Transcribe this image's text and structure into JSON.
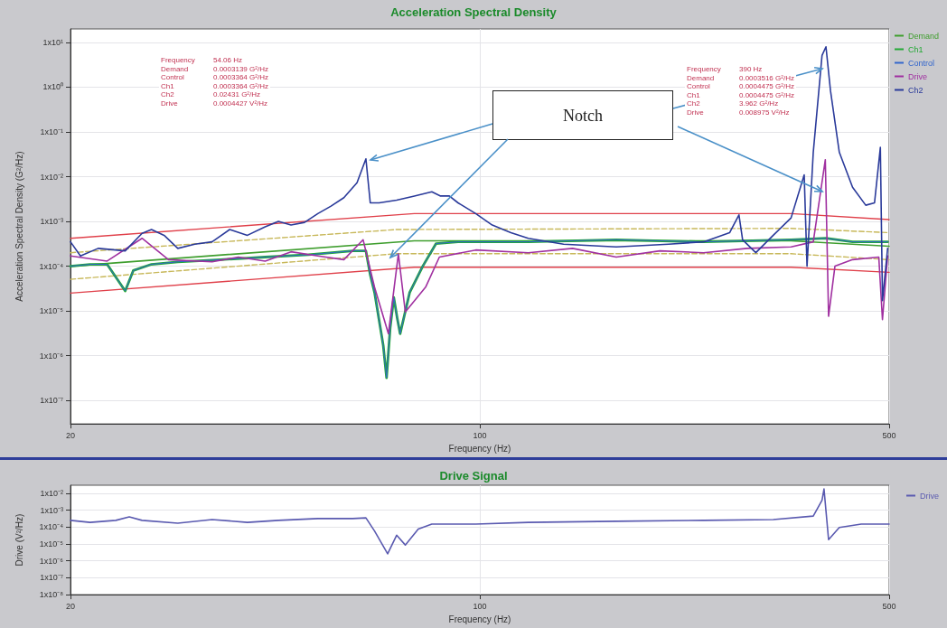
{
  "chart_data": [
    {
      "type": "line",
      "title": "Acceleration Spectral Density",
      "xlabel": "Frequency (Hz)",
      "ylabel": "Acceleration Spectral Density (G²/Hz)",
      "log": "xy",
      "grid": true,
      "legend": "top right",
      "marker": "none",
      "xlim": [
        20,
        500
      ],
      "xticks": [
        20,
        100,
        500
      ],
      "ylim": [
        3e-08,
        20
      ],
      "yticks": [
        {
          "value": 1e-07,
          "label": "1x10⁻⁷"
        },
        {
          "value": 1e-06,
          "label": "1x10⁻⁶"
        },
        {
          "value": 1e-05,
          "label": "1x10⁻⁵"
        },
        {
          "value": 0.0001,
          "label": "1x10⁻⁴"
        },
        {
          "value": 0.001,
          "label": "1x10⁻³"
        },
        {
          "value": 0.01,
          "label": "1x10⁻²"
        },
        {
          "value": 0.1,
          "label": "1x10⁻¹"
        },
        {
          "value": 1,
          "label": "1x10⁰"
        },
        {
          "value": 10,
          "label": "1x10¹"
        }
      ],
      "series": [
        {
          "color": "#e0404a",
          "x": [
            20,
            77.3,
            340,
            500
          ],
          "values": [
            0.00042,
            0.0015,
            0.0015,
            0.0011
          ]
        },
        {
          "color": "#e0404a",
          "x": [
            20,
            77.3,
            340,
            500
          ],
          "values": [
            2.5e-05,
            9.5e-05,
            9.5e-05,
            7.3e-05
          ]
        },
        {
          "color": "#c8b85a",
          "line_style": "dashed",
          "x": [
            20,
            72.1,
            340,
            500
          ],
          "values": [
            0.0002,
            0.00066,
            0.0007,
            0.00056
          ]
        },
        {
          "color": "#c8b85a",
          "line_style": "dashed",
          "x": [
            20,
            72.1,
            340,
            500
          ],
          "values": [
            5.1e-05,
            0.00019,
            0.00019,
            0.00014
          ]
        },
        {
          "name": "Demand",
          "color": "#3f9e2e",
          "x": [
            20,
            77.3,
            340,
            500
          ],
          "values": [
            0.0001,
            0.00037,
            0.00037,
            0.00028
          ]
        },
        {
          "name": "Ch1",
          "color": "#22a834",
          "x": [
            20,
            21.6,
            23.1,
            24.8,
            25.6,
            27.5,
            30.5,
            36.1,
            43.0,
            51.0,
            60.7,
            63.9,
            65.0,
            66.1,
            68.4,
            69.3,
            70.3,
            71.3,
            72.3,
            73.1,
            75.9,
            79.9,
            84.2,
            91.8,
            121,
            171,
            241,
            340,
            390,
            433,
            497
          ],
          "values": [
            0.0001,
            0.00011,
            0.00011,
            2.8e-05,
            8e-05,
            0.00011,
            0.000125,
            0.00014,
            0.00016,
            0.00018,
            0.00022,
            0.00022,
            6.4e-05,
            2.6e-05,
            1.7e-06,
            3.2e-07,
            4.2e-06,
            2e-05,
            6.7e-06,
            3.1e-06,
            2.6e-05,
            0.0001,
            0.00032,
            0.00035,
            0.00035,
            0.00039,
            0.00035,
            0.00039,
            0.00042,
            0.00035,
            0.00035
          ]
        },
        {
          "name": "Control",
          "color": "#3366cc",
          "x": [
            20,
            21.6,
            23.1,
            24.8,
            25.6,
            27.5,
            30.5,
            36.1,
            43.0,
            51.0,
            60.7,
            63.9,
            65.0,
            66.1,
            68.4,
            69.3,
            70.3,
            71.3,
            72.3,
            73.1,
            75.9,
            79.9,
            84.2,
            91.8,
            121,
            171,
            241,
            340,
            390,
            433,
            497
          ],
          "values": [
            0.0001,
            0.00011,
            0.00011,
            2.8e-05,
            8e-05,
            0.00011,
            0.000125,
            0.00014,
            0.00016,
            0.00018,
            0.00022,
            0.00022,
            6.4e-05,
            2.6e-05,
            1.7e-06,
            3.2e-07,
            4.2e-06,
            2e-05,
            6.7e-06,
            3.1e-06,
            2.6e-05,
            0.0001,
            0.00032,
            0.00035,
            0.00035,
            0.00039,
            0.00035,
            0.00039,
            0.00042,
            0.00035,
            0.00035
          ]
        },
        {
          "name": "Drive",
          "color": "#a030a0",
          "x": [
            20,
            23.1,
            26.5,
            29.4,
            34.9,
            38.7,
            43.0,
            47.6,
            52.9,
            58.6,
            63.2,
            66.1,
            69.8,
            72.6,
            74.6,
            80.8,
            85.3,
            98.4,
            121,
            144,
            171,
            203,
            241,
            286,
            340,
            371,
            389,
            394,
            404,
            433,
            480,
            487,
            497
          ],
          "values": [
            0.00017,
            0.00013,
            0.00042,
            0.00014,
            0.000125,
            0.00016,
            0.00013,
            0.00021,
            0.00017,
            0.00014,
            0.00039,
            3.4e-05,
            3.1e-06,
            0.00019,
            9.5e-06,
            3.4e-05,
            0.00016,
            0.00023,
            0.0002,
            0.00025,
            0.00016,
            0.00022,
            0.0002,
            0.00025,
            0.00027,
            0.00035,
            0.024,
            7.6e-06,
            0.0001,
            0.00014,
            0.00016,
            6.4e-06,
            0.00017
          ]
        },
        {
          "name": "Ch2",
          "color": "#2a3a9a",
          "x": [
            20,
            20.8,
            22.3,
            24.8,
            26.5,
            27.5,
            28.9,
            30.5,
            32.6,
            34.9,
            37.4,
            40.1,
            43.0,
            45.3,
            47.6,
            50.2,
            52.9,
            55.7,
            58.6,
            61.7,
            63.9,
            65.0,
            67.3,
            72.1,
            77.3,
            82.8,
            85.7,
            88.7,
            91.8,
            98.4,
            105,
            113,
            121,
            139,
            171,
            210,
            241,
            267,
            277,
            281,
            296,
            317,
            340,
            358,
            362,
            371,
            384,
            390,
            397,
            411,
            433,
            456,
            472,
            483,
            487,
            497
          ],
          "values": [
            0.00035,
            0.00017,
            0.00025,
            0.00022,
            0.00054,
            0.00066,
            0.00049,
            0.00025,
            0.00031,
            0.00035,
            0.00066,
            0.00049,
            0.00076,
            0.001,
            0.00083,
            0.00095,
            0.0015,
            0.0022,
            0.0034,
            0.0073,
            0.025,
            0.0026,
            0.0026,
            0.003,
            0.0037,
            0.0046,
            0.0037,
            0.0037,
            0.0026,
            0.0015,
            0.00083,
            0.00056,
            0.00042,
            0.00031,
            0.00027,
            0.00031,
            0.00035,
            0.00056,
            0.0014,
            0.00039,
            0.0002,
            0.00049,
            0.0012,
            0.011,
            0.0001,
            0.035,
            5.1,
            8,
            0.83,
            0.035,
            0.0058,
            0.0023,
            0.0026,
            0.045,
            1.7e-05,
            0.00025
          ]
        }
      ],
      "annotations": [
        "Frequency 54.06 Hz",
        "Demand 0.0003139 G²/Hz",
        "Control 0.0003364 G²/Hz",
        "Ch1 0.0003364 G²/Hz",
        "Ch2 0.02431 G²/Hz",
        "Drive 0.0004427 V²/Hz",
        "Frequency 390 Hz",
        "Demand 0.0003516 G²/Hz",
        "Control 0.0004475 G²/Hz",
        "Ch1 0.0004475 G²/Hz",
        "Ch2 3.962 G²/Hz",
        "Drive 0.008975 V²/Hz",
        "Notch"
      ]
    },
    {
      "type": "line",
      "title": "Drive Signal",
      "xlabel": "Frequency (Hz)",
      "ylabel": "Drive (V²/Hz)",
      "log": "xy",
      "grid": true,
      "legend": "top right",
      "marker": "none",
      "xlim": [
        20,
        500
      ],
      "xticks": [
        20,
        100,
        500
      ],
      "ylim": [
        1e-08,
        0.03
      ],
      "yticks": [
        {
          "value": 1e-08,
          "label": "1x10⁻⁸"
        },
        {
          "value": 1e-07,
          "label": "1x10⁻⁷"
        },
        {
          "value": 1e-06,
          "label": "1x10⁻⁶"
        },
        {
          "value": 1e-05,
          "label": "1x10⁻⁵"
        },
        {
          "value": 0.0001,
          "label": "1x10⁻⁴"
        },
        {
          "value": 0.001,
          "label": "1x10⁻³"
        },
        {
          "value": 0.01,
          "label": "1x10⁻²"
        }
      ],
      "series": [
        {
          "name": "Drive",
          "color": "#5a5ab0",
          "x": [
            20,
            21.6,
            23.9,
            25.2,
            26.5,
            30.5,
            34.9,
            40.1,
            45.3,
            52.9,
            60.7,
            63.9,
            66.1,
            69.6,
            72.1,
            74.6,
            78.5,
            82.8,
            98.4,
            121,
            171,
            241,
            317,
            371,
            384,
            387,
            394,
            411,
            448,
            500
          ],
          "values": [
            0.00025,
            0.00019,
            0.00025,
            0.0004,
            0.00025,
            0.00017,
            0.00028,
            0.00019,
            0.00025,
            0.00032,
            0.00032,
            0.00035,
            5.9e-05,
            2.6e-06,
            3.3e-05,
            8.7e-06,
            7.6e-05,
            0.00015,
            0.00015,
            0.00019,
            0.00022,
            0.00025,
            0.00028,
            0.00045,
            0.0039,
            0.018,
            1.8e-05,
            9.5e-05,
            0.00015,
            0.00015
          ]
        }
      ]
    }
  ]
}
